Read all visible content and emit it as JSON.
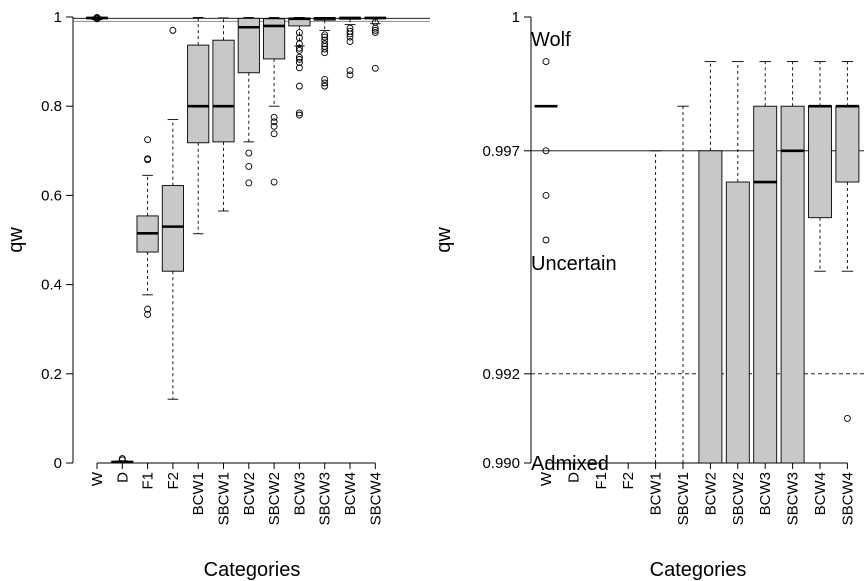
{
  "chart_data": [
    {
      "type": "box",
      "xlabel": "Categories",
      "ylabel": "qw",
      "ylim": [
        0,
        1
      ],
      "yticks": [
        0,
        0.2,
        0.4,
        0.6,
        0.8,
        1
      ],
      "ytick_labels": [
        "0",
        "0.2",
        "0.4",
        "0.6",
        "0.8",
        "1"
      ],
      "reference_lines": [
        {
          "y": 0.997,
          "style": "solid"
        },
        {
          "y": 0.99,
          "style": "gray"
        }
      ],
      "categories": [
        "W",
        "D",
        "F1",
        "F2",
        "BCW1",
        "SBCW1",
        "BCW2",
        "SBCW2",
        "BCW3",
        "SBCW3",
        "BCW4",
        "SBCW4"
      ],
      "boxes": [
        {
          "category": "W",
          "min": 0.994,
          "q1": 0.996,
          "median": 0.998,
          "q3": 0.999,
          "max": 1.0,
          "outliers": [
            0.999,
            0.997,
            0.996
          ]
        },
        {
          "category": "D",
          "min": 0.0,
          "q1": 0.001,
          "median": 0.002,
          "q3": 0.004,
          "max": 0.005,
          "outliers": [
            0.01,
            0.007
          ]
        },
        {
          "category": "F1",
          "min": 0.377,
          "q1": 0.473,
          "median": 0.515,
          "q3": 0.554,
          "max": 0.645,
          "outliers": [
            0.725,
            0.682,
            0.68,
            0.345,
            0.333
          ]
        },
        {
          "category": "F2",
          "min": 0.143,
          "q1": 0.43,
          "median": 0.53,
          "q3": 0.622,
          "max": 0.77,
          "outliers": [
            0.97
          ]
        },
        {
          "category": "BCW1",
          "min": 0.514,
          "q1": 0.718,
          "median": 0.8,
          "q3": 0.937,
          "max": 0.999,
          "outliers": []
        },
        {
          "category": "SBCW1",
          "min": 0.565,
          "q1": 0.72,
          "median": 0.8,
          "q3": 0.948,
          "max": 0.998,
          "outliers": []
        },
        {
          "category": "BCW2",
          "min": 0.72,
          "q1": 0.875,
          "median": 0.977,
          "q3": 0.997,
          "max": 0.999,
          "outliers": [
            0.695,
            0.665,
            0.628
          ]
        },
        {
          "category": "SBCW2",
          "min": 0.8,
          "q1": 0.906,
          "median": 0.98,
          "q3": 0.996,
          "max": 0.999,
          "outliers": [
            0.775,
            0.765,
            0.755,
            0.738,
            0.63
          ]
        },
        {
          "category": "BCW3",
          "min": 0.935,
          "q1": 0.98,
          "median": 0.996,
          "q3": 0.998,
          "max": 0.999,
          "outliers": [
            0.965,
            0.953,
            0.94,
            0.93,
            0.925,
            0.91,
            0.905,
            0.898,
            0.886,
            0.845,
            0.785,
            0.78
          ]
        },
        {
          "category": "SBCW3",
          "min": 0.97,
          "q1": 0.993,
          "median": 0.997,
          "q3": 0.998,
          "max": 0.999,
          "outliers": [
            0.96,
            0.955,
            0.948,
            0.94,
            0.934,
            0.928,
            0.92,
            0.86,
            0.852,
            0.845
          ]
        },
        {
          "category": "BCW4",
          "min": 0.983,
          "q1": 0.995,
          "median": 0.998,
          "q3": 0.998,
          "max": 0.999,
          "outliers": [
            0.975,
            0.968,
            0.962,
            0.955,
            0.945,
            0.88,
            0.87
          ]
        },
        {
          "category": "SBCW4",
          "min": 0.985,
          "q1": 0.996,
          "median": 0.998,
          "q3": 0.998,
          "max": 0.999,
          "outliers": [
            0.988,
            0.975,
            0.97,
            0.965,
            0.885
          ]
        }
      ]
    },
    {
      "type": "box",
      "xlabel": "Categories",
      "ylabel": "qw",
      "ylim": [
        0.99,
        1
      ],
      "yticks": [
        0.99,
        0.992,
        0.997,
        1
      ],
      "ytick_labels": [
        "0.990",
        "0.992",
        "0.997",
        "1"
      ],
      "reference_lines": [
        {
          "y": 0.997,
          "style": "solid"
        },
        {
          "y": 0.992,
          "style": "dashed"
        }
      ],
      "region_labels": [
        "Wolf",
        "Uncertain",
        "Admixed"
      ],
      "categories": [
        "W",
        "D",
        "F1",
        "F2",
        "BCW1",
        "SBCW1",
        "BCW2",
        "SBCW2",
        "BCW3",
        "SBCW3",
        "BCW4",
        "SBCW4"
      ],
      "boxes": [
        {
          "category": "W",
          "median": 0.998,
          "outliers": [
            0.999,
            0.997,
            0.996,
            0.995
          ]
        },
        {
          "category": "D"
        },
        {
          "category": "F1"
        },
        {
          "category": "F2"
        },
        {
          "category": "BCW1",
          "min": 0.99,
          "q1": 0.99,
          "median": 0.99,
          "q3": 0.99,
          "max": 0.997,
          "outliers": []
        },
        {
          "category": "SBCW1",
          "min": 0.99,
          "q1": 0.99,
          "median": 0.99,
          "q3": 0.99,
          "max": 0.998,
          "outliers": []
        },
        {
          "category": "BCW2",
          "min": 0.99,
          "q1": 0.99,
          "median": 0.99,
          "q3": 0.997,
          "max": 0.999,
          "outliers": []
        },
        {
          "category": "SBCW2",
          "min": 0.99,
          "q1": 0.99,
          "median": 0.99,
          "q3": 0.9963,
          "max": 0.999,
          "outliers": []
        },
        {
          "category": "BCW3",
          "min": 0.99,
          "q1": 0.99,
          "median": 0.9963,
          "q3": 0.998,
          "max": 0.999,
          "outliers": []
        },
        {
          "category": "SBCW3",
          "min": 0.99,
          "q1": 0.99,
          "median": 0.997,
          "q3": 0.998,
          "max": 0.999,
          "outliers": []
        },
        {
          "category": "BCW4",
          "min": 0.9943,
          "q1": 0.9955,
          "median": 0.998,
          "q3": 0.998,
          "max": 0.999,
          "outliers": []
        },
        {
          "category": "SBCW4",
          "min": 0.9943,
          "q1": 0.9963,
          "median": 0.998,
          "q3": 0.998,
          "max": 0.999,
          "outliers": [
            0.991
          ]
        }
      ]
    }
  ]
}
